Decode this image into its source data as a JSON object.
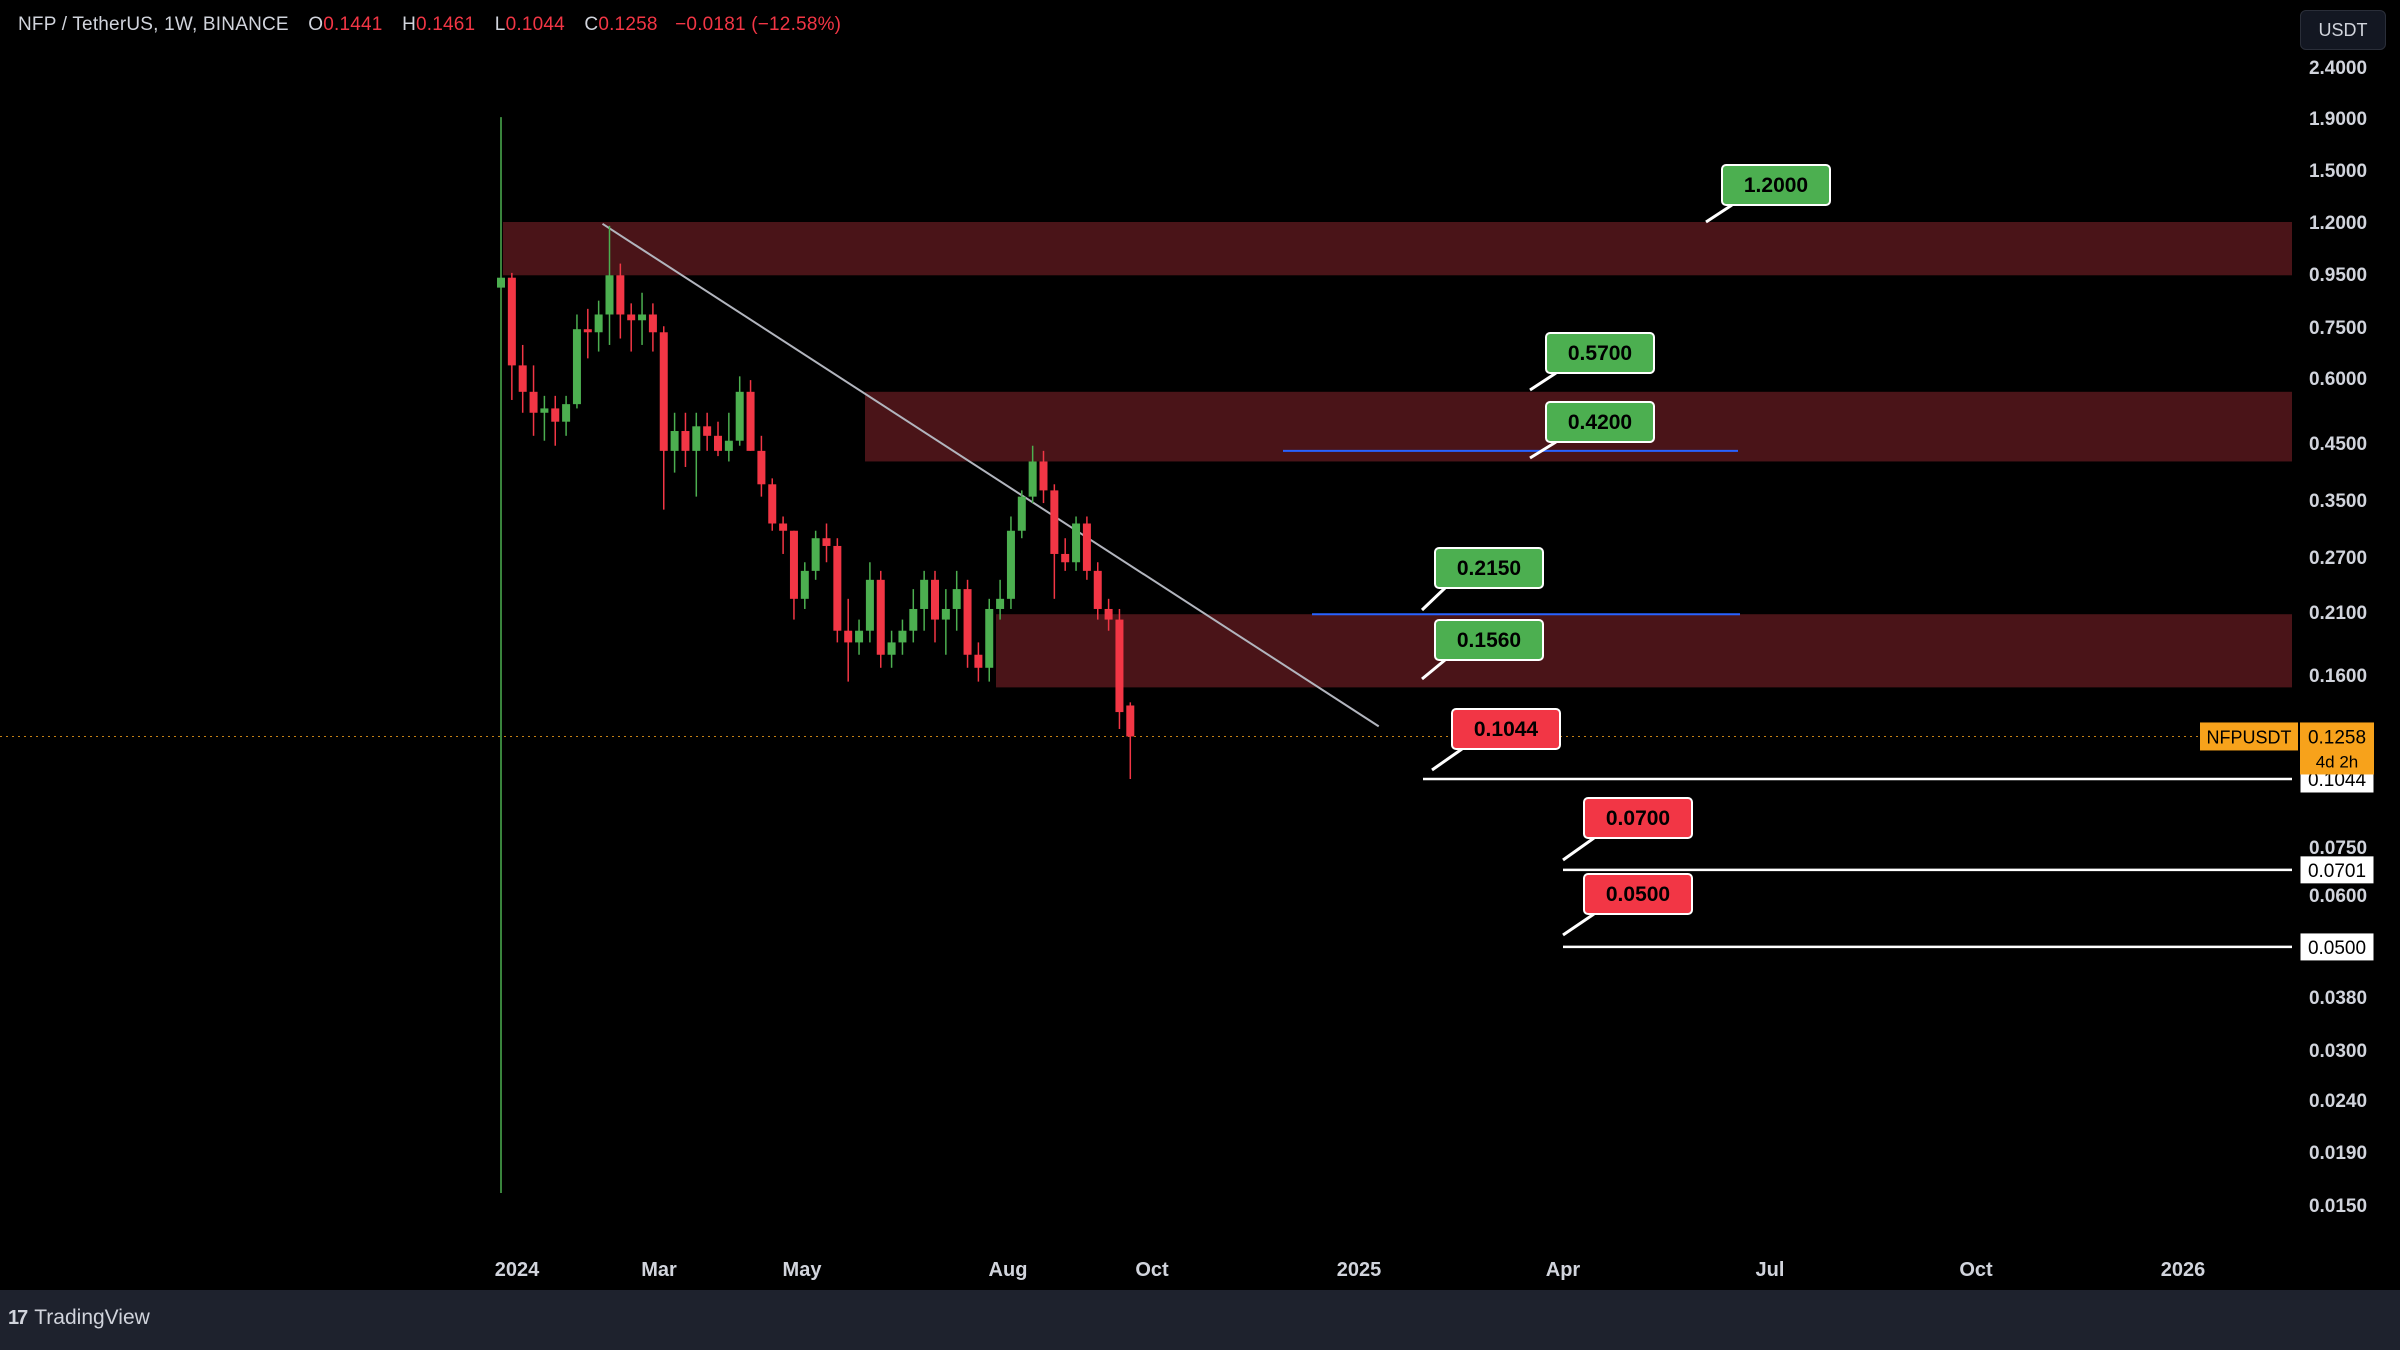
{
  "header": {
    "symbol": "NFP / TetherUS, 1W, BINANCE",
    "o_label": "O",
    "o_value": "0.1441",
    "h_label": "H",
    "h_value": "0.1461",
    "l_label": "L",
    "l_value": "0.1044",
    "c_label": "C",
    "c_value": "0.1258",
    "change": "−0.0181 (−12.58%)"
  },
  "currency_button": "USDT",
  "branding": {
    "logo_mark": "17",
    "name": "TradingView"
  },
  "colors": {
    "up": "#4caf50",
    "down": "#f23645",
    "zone": "#4a1418",
    "target_up": "#4caf50",
    "target_down": "#f23645",
    "trendline": "#b2b5be",
    "level_line": "#ffffff",
    "blue_line": "#2962ff",
    "price_tag": "#f7a21b",
    "background": "#000000"
  },
  "chart_data": {
    "type": "candlestick",
    "title": "NFP / TetherUS, 1W, BINANCE",
    "y_scale": "log",
    "y_ticks": [
      "2.4000",
      "1.9000",
      "1.5000",
      "1.2000",
      "0.9500",
      "0.7500",
      "0.6000",
      "0.4500",
      "0.3500",
      "0.2700",
      "0.2100",
      "0.1600",
      "0.1044",
      "0.0750",
      "0.0701",
      "0.0600",
      "0.0500",
      "0.0380",
      "0.0300",
      "0.0240",
      "0.0190",
      "0.0150"
    ],
    "x_ticks": [
      "2024",
      "Mar",
      "May",
      "Aug",
      "Oct",
      "2025",
      "Apr",
      "Jul",
      "Oct",
      "2026"
    ],
    "candles_ohlc": [
      [
        0.9,
        1.9,
        0.017,
        0.94
      ],
      [
        0.94,
        0.96,
        0.55,
        0.64
      ],
      [
        0.64,
        0.7,
        0.52,
        0.57
      ],
      [
        0.57,
        0.64,
        0.47,
        0.52
      ],
      [
        0.52,
        0.56,
        0.46,
        0.53
      ],
      [
        0.53,
        0.56,
        0.45,
        0.5
      ],
      [
        0.5,
        0.56,
        0.47,
        0.54
      ],
      [
        0.54,
        0.8,
        0.53,
        0.75
      ],
      [
        0.75,
        0.82,
        0.66,
        0.74
      ],
      [
        0.74,
        0.85,
        0.68,
        0.8
      ],
      [
        0.8,
        1.18,
        0.7,
        0.95
      ],
      [
        0.95,
        1.0,
        0.72,
        0.8
      ],
      [
        0.8,
        0.84,
        0.68,
        0.78
      ],
      [
        0.78,
        0.88,
        0.7,
        0.8
      ],
      [
        0.8,
        0.84,
        0.68,
        0.74
      ],
      [
        0.74,
        0.76,
        0.34,
        0.44
      ],
      [
        0.44,
        0.52,
        0.4,
        0.48
      ],
      [
        0.48,
        0.52,
        0.41,
        0.44
      ],
      [
        0.44,
        0.52,
        0.36,
        0.49
      ],
      [
        0.49,
        0.52,
        0.44,
        0.47
      ],
      [
        0.47,
        0.5,
        0.43,
        0.44
      ],
      [
        0.44,
        0.52,
        0.42,
        0.46
      ],
      [
        0.46,
        0.61,
        0.45,
        0.57
      ],
      [
        0.57,
        0.6,
        0.44,
        0.44
      ],
      [
        0.44,
        0.47,
        0.36,
        0.38
      ],
      [
        0.38,
        0.39,
        0.31,
        0.32
      ],
      [
        0.32,
        0.33,
        0.28,
        0.31
      ],
      [
        0.31,
        0.31,
        0.21,
        0.23
      ],
      [
        0.23,
        0.27,
        0.22,
        0.26
      ],
      [
        0.26,
        0.31,
        0.25,
        0.3
      ],
      [
        0.3,
        0.32,
        0.27,
        0.29
      ],
      [
        0.29,
        0.3,
        0.19,
        0.2
      ],
      [
        0.2,
        0.23,
        0.16,
        0.19
      ],
      [
        0.19,
        0.21,
        0.18,
        0.2
      ],
      [
        0.2,
        0.27,
        0.19,
        0.25
      ],
      [
        0.25,
        0.26,
        0.17,
        0.18
      ],
      [
        0.18,
        0.2,
        0.17,
        0.19
      ],
      [
        0.19,
        0.21,
        0.18,
        0.2
      ],
      [
        0.2,
        0.24,
        0.19,
        0.22
      ],
      [
        0.22,
        0.26,
        0.2,
        0.25
      ],
      [
        0.25,
        0.26,
        0.19,
        0.21
      ],
      [
        0.21,
        0.24,
        0.18,
        0.22
      ],
      [
        0.22,
        0.26,
        0.2,
        0.24
      ],
      [
        0.24,
        0.25,
        0.17,
        0.18
      ],
      [
        0.18,
        0.19,
        0.16,
        0.17
      ],
      [
        0.17,
        0.23,
        0.16,
        0.22
      ],
      [
        0.22,
        0.25,
        0.21,
        0.23
      ],
      [
        0.23,
        0.33,
        0.22,
        0.31
      ],
      [
        0.31,
        0.37,
        0.3,
        0.36
      ],
      [
        0.36,
        0.45,
        0.35,
        0.42
      ],
      [
        0.42,
        0.44,
        0.35,
        0.37
      ],
      [
        0.37,
        0.38,
        0.23,
        0.28
      ],
      [
        0.28,
        0.3,
        0.26,
        0.27
      ],
      [
        0.27,
        0.33,
        0.26,
        0.32
      ],
      [
        0.32,
        0.33,
        0.25,
        0.26
      ],
      [
        0.26,
        0.27,
        0.21,
        0.22
      ],
      [
        0.22,
        0.23,
        0.2,
        0.21
      ],
      [
        0.21,
        0.22,
        0.13,
        0.14
      ],
      [
        0.1441,
        0.1461,
        0.1044,
        0.1258
      ]
    ],
    "zones": [
      [
        0.95,
        1.2
      ],
      [
        0.42,
        0.57
      ],
      [
        0.156,
        0.215
      ]
    ],
    "trendline": [
      [
        1.18,
        10
      ],
      [
        0.135,
        75
      ]
    ],
    "blue_lines": [
      0.44,
      0.215
    ],
    "target_labels": [
      {
        "text": "1.2000",
        "price": 1.2,
        "kind": "up"
      },
      {
        "text": "0.5700",
        "price": 0.57,
        "kind": "up"
      },
      {
        "text": "0.4200",
        "price": 0.42,
        "kind": "up"
      },
      {
        "text": "0.2150",
        "price": 0.215,
        "kind": "up"
      },
      {
        "text": "0.1560",
        "price": 0.156,
        "kind": "up"
      },
      {
        "text": "0.1044",
        "price": 0.1044,
        "kind": "down"
      },
      {
        "text": "0.0700",
        "price": 0.07,
        "kind": "down"
      },
      {
        "text": "0.0500",
        "price": 0.05,
        "kind": "down"
      }
    ],
    "horizontal_levels": [
      0.1044,
      0.0701,
      0.05
    ],
    "axis_tags": [
      {
        "text": "0.1044",
        "price": 0.1044
      },
      {
        "text": "0.0701",
        "price": 0.0701
      },
      {
        "text": "0.0500",
        "price": 0.05
      }
    ],
    "current_price": {
      "symbol": "NFPUSDT",
      "value": "0.1258",
      "price": 0.1258,
      "countdown": "4d 2h"
    }
  }
}
